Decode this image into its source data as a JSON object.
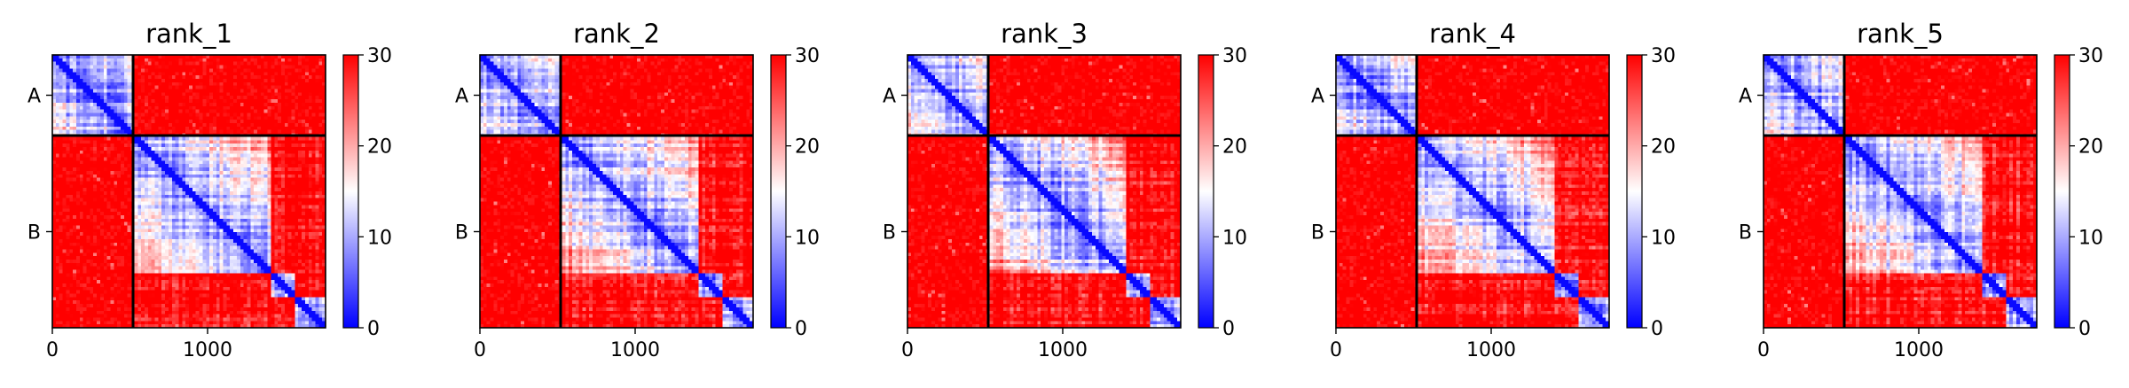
{
  "chart_data": [
    {
      "type": "heatmap",
      "title": "rank_1",
      "xlabel": "",
      "ylabel": "",
      "xlim": [
        0,
        1760
      ],
      "x_ticks": [
        "0",
        "1000"
      ],
      "x_tick_values": [
        0,
        1000
      ],
      "chains": [
        {
          "label": "A",
          "start": 0,
          "end": 520
        },
        {
          "label": "B",
          "start": 520,
          "end": 1760
        }
      ],
      "colorbar": {
        "min": 0,
        "max": 30,
        "ticks": [
          "0",
          "10",
          "20",
          "30"
        ],
        "tick_values": [
          0,
          10,
          20,
          30
        ],
        "colormap": [
          "#0000ff",
          "#ffffff",
          "#ff0000"
        ]
      },
      "intra_domains": [
        [
          0,
          520
        ],
        [
          520,
          1400
        ],
        [
          1400,
          1560
        ],
        [
          1560,
          1760
        ]
      ],
      "grid": false
    },
    {
      "type": "heatmap",
      "title": "rank_2",
      "xlabel": "",
      "ylabel": "",
      "xlim": [
        0,
        1760
      ],
      "x_ticks": [
        "0",
        "1000"
      ],
      "x_tick_values": [
        0,
        1000
      ],
      "chains": [
        {
          "label": "A",
          "start": 0,
          "end": 520
        },
        {
          "label": "B",
          "start": 520,
          "end": 1760
        }
      ],
      "colorbar": {
        "min": 0,
        "max": 30,
        "ticks": [
          "0",
          "10",
          "20",
          "30"
        ],
        "tick_values": [
          0,
          10,
          20,
          30
        ],
        "colormap": [
          "#0000ff",
          "#ffffff",
          "#ff0000"
        ]
      },
      "intra_domains": [
        [
          0,
          520
        ],
        [
          520,
          1400
        ],
        [
          1400,
          1560
        ],
        [
          1560,
          1760
        ]
      ],
      "grid": false
    },
    {
      "type": "heatmap",
      "title": "rank_3",
      "xlabel": "",
      "ylabel": "",
      "xlim": [
        0,
        1760
      ],
      "x_ticks": [
        "0",
        "1000"
      ],
      "x_tick_values": [
        0,
        1000
      ],
      "chains": [
        {
          "label": "A",
          "start": 0,
          "end": 520
        },
        {
          "label": "B",
          "start": 520,
          "end": 1760
        }
      ],
      "colorbar": {
        "min": 0,
        "max": 30,
        "ticks": [
          "0",
          "10",
          "20",
          "30"
        ],
        "tick_values": [
          0,
          10,
          20,
          30
        ],
        "colormap": [
          "#0000ff",
          "#ffffff",
          "#ff0000"
        ]
      },
      "intra_domains": [
        [
          0,
          520
        ],
        [
          520,
          1400
        ],
        [
          1400,
          1560
        ],
        [
          1560,
          1760
        ]
      ],
      "grid": false
    },
    {
      "type": "heatmap",
      "title": "rank_4",
      "xlabel": "",
      "ylabel": "",
      "xlim": [
        0,
        1760
      ],
      "x_ticks": [
        "0",
        "1000"
      ],
      "x_tick_values": [
        0,
        1000
      ],
      "chains": [
        {
          "label": "A",
          "start": 0,
          "end": 520
        },
        {
          "label": "B",
          "start": 520,
          "end": 1760
        }
      ],
      "colorbar": {
        "min": 0,
        "max": 30,
        "ticks": [
          "0",
          "10",
          "20",
          "30"
        ],
        "tick_values": [
          0,
          10,
          20,
          30
        ],
        "colormap": [
          "#0000ff",
          "#ffffff",
          "#ff0000"
        ]
      },
      "intra_domains": [
        [
          0,
          520
        ],
        [
          520,
          1400
        ],
        [
          1400,
          1560
        ],
        [
          1560,
          1760
        ]
      ],
      "grid": false
    },
    {
      "type": "heatmap",
      "title": "rank_5",
      "xlabel": "",
      "ylabel": "",
      "xlim": [
        0,
        1760
      ],
      "x_ticks": [
        "0",
        "1000"
      ],
      "x_tick_values": [
        0,
        1000
      ],
      "chains": [
        {
          "label": "A",
          "start": 0,
          "end": 520
        },
        {
          "label": "B",
          "start": 520,
          "end": 1760
        }
      ],
      "colorbar": {
        "min": 0,
        "max": 30,
        "ticks": [
          "0",
          "10",
          "20",
          "30"
        ],
        "tick_values": [
          0,
          10,
          20,
          30
        ],
        "colormap": [
          "#0000ff",
          "#ffffff",
          "#ff0000"
        ]
      },
      "intra_domains": [
        [
          0,
          520
        ],
        [
          520,
          1400
        ],
        [
          1400,
          1560
        ],
        [
          1560,
          1760
        ]
      ],
      "grid": false
    }
  ]
}
